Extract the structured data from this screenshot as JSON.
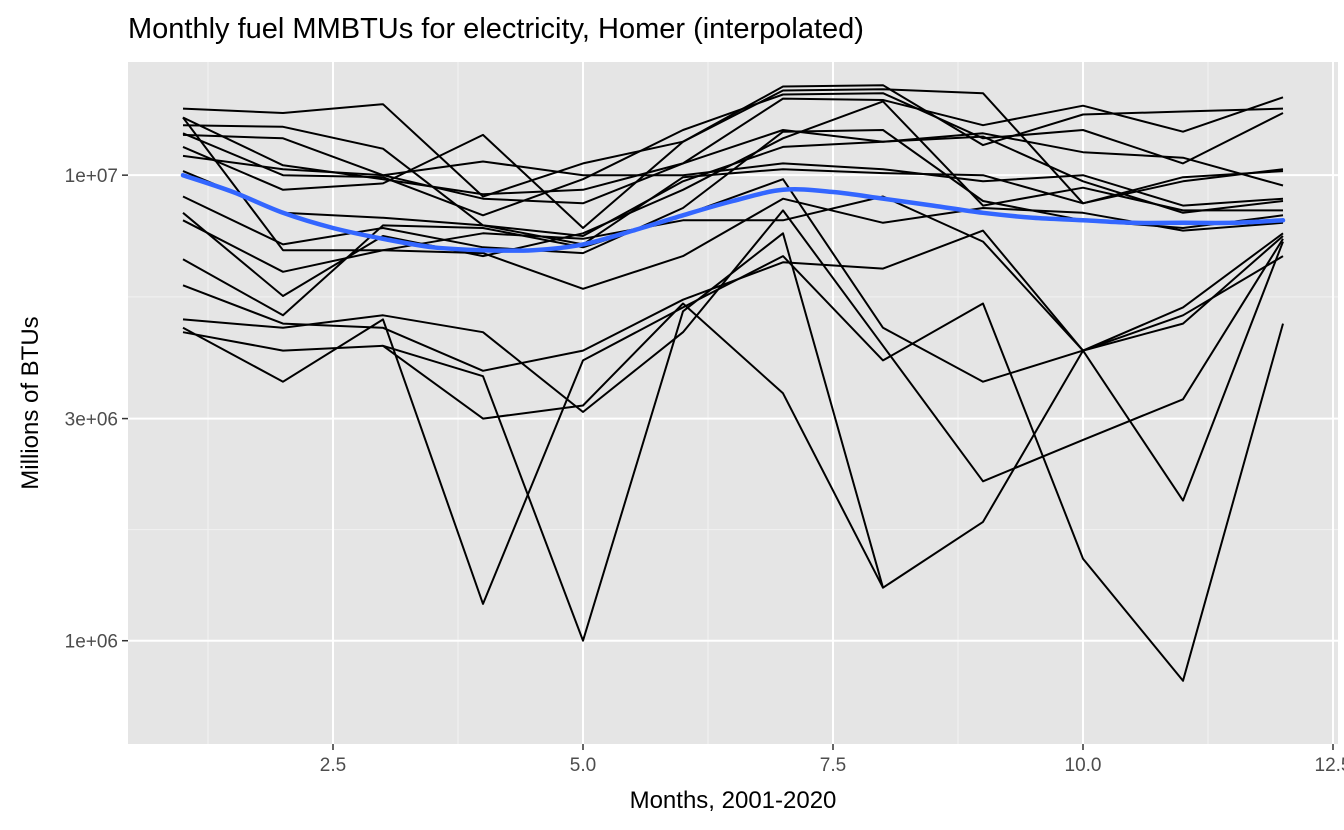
{
  "chart_data": {
    "type": "line",
    "title": "Monthly fuel MMBTUs for electricity, Homer (interpolated)",
    "xlabel": "Months, 2001-2020",
    "ylabel": "Millions of BTUs",
    "xlim": [
      0.45,
      12.55
    ],
    "ylim": [
      600000,
      17500000
    ],
    "y_scale": "log10",
    "x_ticks": [
      2.5,
      5.0,
      7.5,
      10.0,
      12.5
    ],
    "x_tick_labels": [
      "2.5",
      "5.0",
      "7.5",
      "10.0",
      "12.5"
    ],
    "y_ticks": [
      1000000,
      3000000,
      10000000
    ],
    "y_tick_labels": [
      "1e+06",
      "3e+06",
      "1e+07"
    ],
    "grid": true,
    "series_color": "#000000",
    "smooth_color": "#3366ff",
    "x": [
      1,
      2,
      3,
      4,
      5,
      6,
      7,
      8,
      9,
      10,
      11,
      12
    ],
    "series": [
      {
        "values": [
          13900000,
          13600000,
          14200000,
          9000000,
          10600000,
          11800000,
          15500000,
          15600000,
          11600000,
          13500000,
          13700000,
          13900000
        ]
      },
      {
        "values": [
          13300000,
          10500000,
          9800000,
          9100000,
          9300000,
          10600000,
          14600000,
          14500000,
          12800000,
          14100000,
          12400000,
          14700000
        ]
      },
      {
        "values": [
          12800000,
          12700000,
          11400000,
          7800000,
          7400000,
          9700000,
          11500000,
          11800000,
          12100000,
          9700000,
          8300000,
          8800000
        ]
      },
      {
        "values": [
          12200000,
          12000000,
          10000000,
          8900000,
          8700000,
          10600000,
          12500000,
          11800000,
          12300000,
          11200000,
          10900000,
          9500000
        ]
      },
      {
        "values": [
          11500000,
          9300000,
          9600000,
          12200000,
          7700000,
          11800000,
          15200000,
          15300000,
          15000000,
          8700000,
          9900000,
          10200000
        ]
      },
      {
        "values": [
          12300000,
          10000000,
          9900000,
          8200000,
          9800000,
          12500000,
          14900000,
          15000000,
          12000000,
          12500000,
          10600000,
          13600000
        ]
      },
      {
        "values": [
          11000000,
          10300000,
          10000000,
          10700000,
          10000000,
          10000000,
          10600000,
          10300000,
          9700000,
          10000000,
          8600000,
          8900000
        ]
      },
      {
        "values": [
          10200000,
          8300000,
          8100000,
          7800000,
          7100000,
          9900000,
          10300000,
          10100000,
          10000000,
          8700000,
          9700000,
          10300000
        ]
      },
      {
        "values": [
          9000000,
          7100000,
          7700000,
          7000000,
          6800000,
          8500000,
          12400000,
          12500000,
          8800000,
          8000000,
          7700000,
          8200000
        ]
      },
      {
        "values": [
          8300000,
          5500000,
          7400000,
          6700000,
          7500000,
          9300000,
          12000000,
          14400000,
          8600000,
          9400000,
          8400000,
          8400000
        ]
      },
      {
        "values": [
          8000000,
          6200000,
          6900000,
          6800000,
          5700000,
          6700000,
          8900000,
          7900000,
          8500000,
          8300000,
          7600000,
          7900000
        ]
      },
      {
        "values": [
          13300000,
          6900000,
          6900000,
          7500000,
          7300000,
          8000000,
          8000000,
          9000000,
          7200000,
          4200000,
          4800000,
          7400000
        ]
      },
      {
        "values": [
          6600000,
          5000000,
          7800000,
          7700000,
          7000000,
          8200000,
          9800000,
          4700000,
          3600000,
          4200000,
          2000000,
          7200000
        ]
      },
      {
        "values": [
          5800000,
          4800000,
          4700000,
          3800000,
          4200000,
          5400000,
          6500000,
          6300000,
          7600000,
          4200000,
          5000000,
          6700000
        ]
      },
      {
        "values": [
          4900000,
          4700000,
          5000000,
          4600000,
          3100000,
          4600000,
          8400000,
          4300000,
          2200000,
          2700000,
          3300000,
          7300000
        ]
      },
      {
        "values": [
          4600000,
          4200000,
          4300000,
          3700000,
          1000000,
          5100000,
          7500000,
          1300000,
          1800000,
          4200000,
          5200000,
          7500000
        ]
      },
      {
        "values": [
          4700000,
          3600000,
          4900000,
          1200000,
          4000000,
          5200000,
          6700000,
          4000000,
          5300000,
          1500000,
          820000,
          4800000
        ]
      },
      {
        "values": [
          4500000,
          null,
          4300000,
          3000000,
          3200000,
          5300000,
          3400000,
          1300000,
          null,
          null,
          null,
          null
        ]
      }
    ],
    "smooth": {
      "x": [
        1,
        1.5,
        2,
        2.5,
        3,
        3.5,
        4,
        4.5,
        5,
        5.5,
        6,
        6.5,
        7,
        7.5,
        8,
        8.5,
        9,
        9.5,
        10,
        10.5,
        11,
        11.5,
        12
      ],
      "values": [
        10000000,
        9200000,
        8300000,
        7700000,
        7300000,
        7000000,
        6900000,
        6900000,
        7100000,
        7600000,
        8200000,
        8800000,
        9300000,
        9200000,
        8900000,
        8600000,
        8300000,
        8100000,
        8000000,
        7900000,
        7900000,
        7900000,
        8000000
      ]
    }
  }
}
